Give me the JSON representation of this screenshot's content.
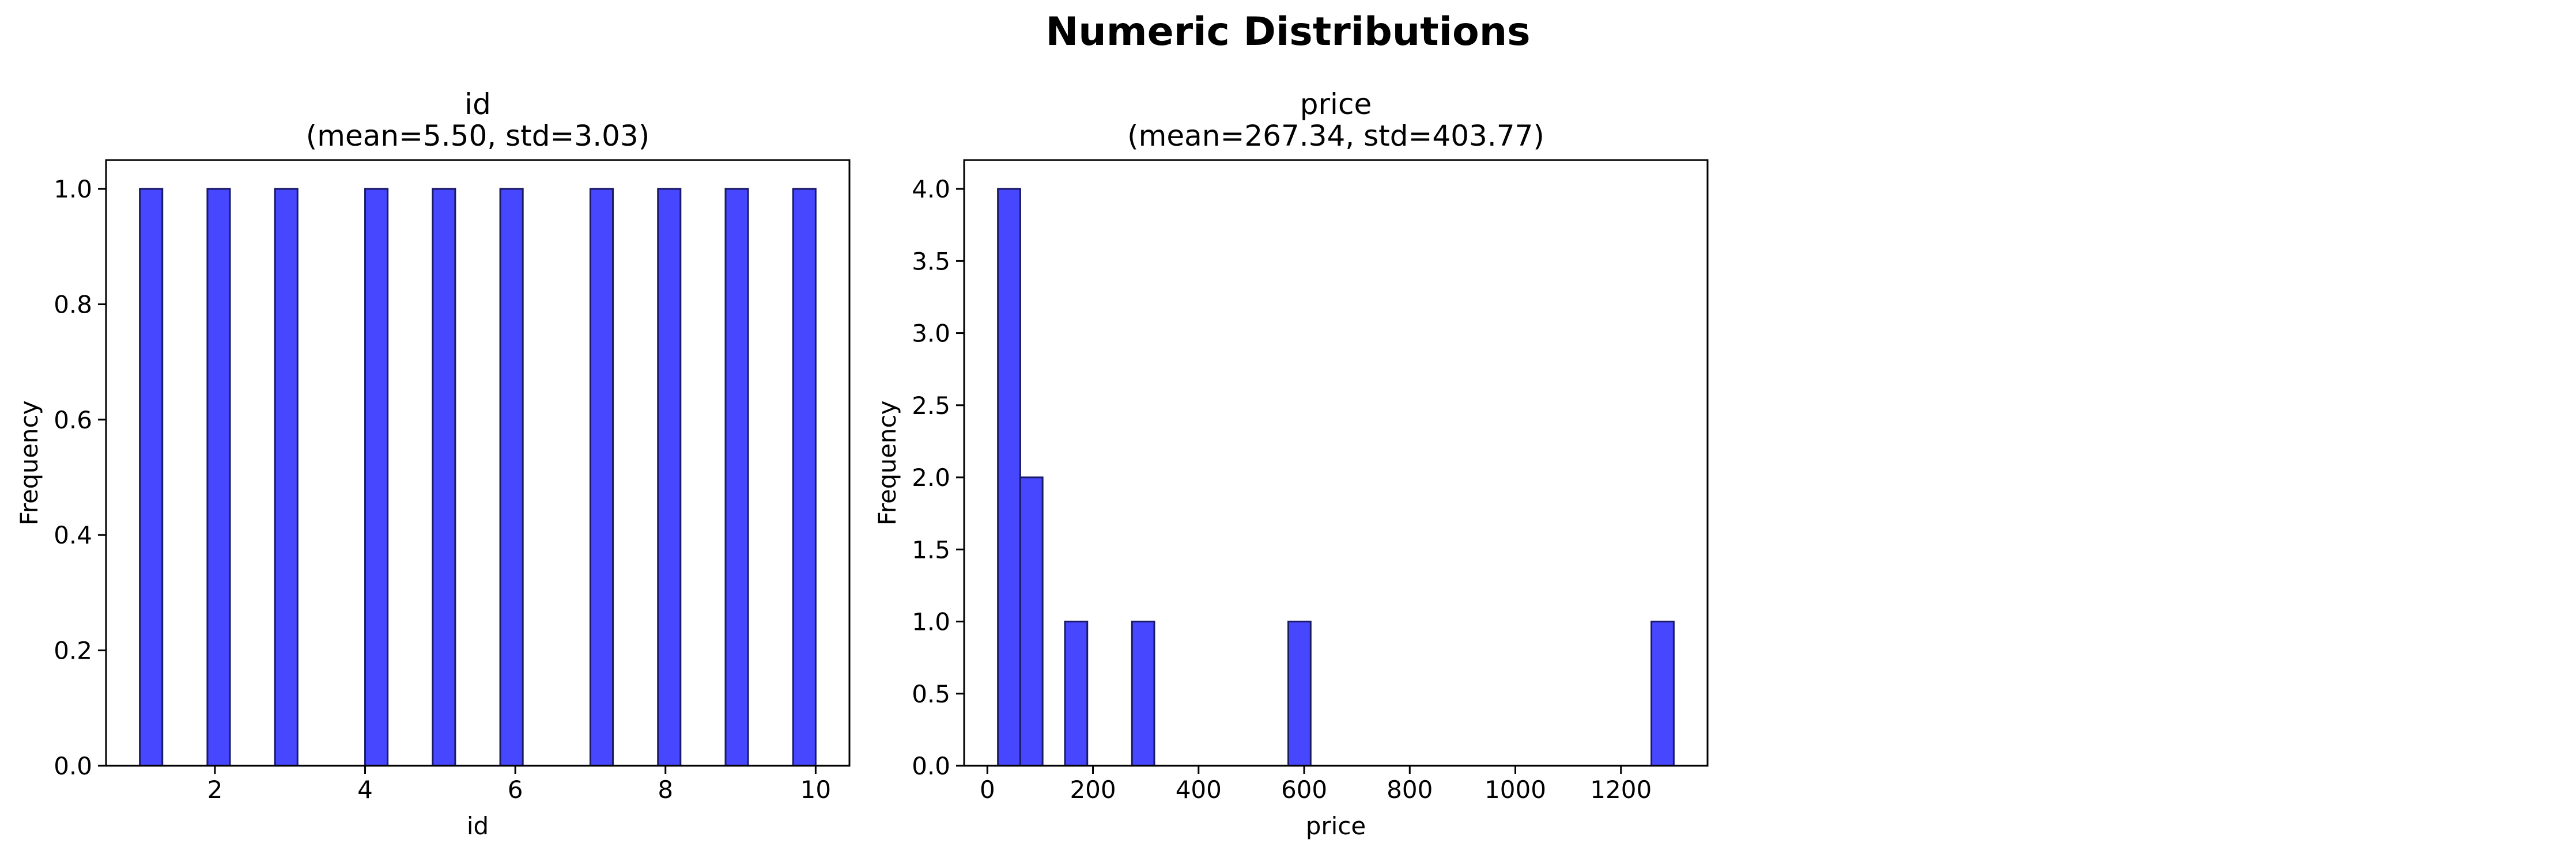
{
  "figure": {
    "suptitle": "Numeric Distributions"
  },
  "style": {
    "bar_color": "#4747ff",
    "bar_edge": "#1a1a66"
  },
  "chart_data": [
    {
      "type": "bar",
      "title": "id",
      "subtitle": "(mean=5.50, std=3.03)",
      "xlabel": "id",
      "ylabel": "Frequency",
      "xlim": [
        0.55,
        10.45
      ],
      "ylim": [
        0,
        1.05
      ],
      "xticks": [
        2,
        4,
        6,
        8,
        10
      ],
      "xtick_labels": [
        "2",
        "4",
        "6",
        "8",
        "10"
      ],
      "yticks": [
        0,
        0.2,
        0.4,
        0.6,
        0.8,
        1.0
      ],
      "ytick_labels": [
        "0.0",
        "0.2",
        "0.4",
        "0.6",
        "0.8",
        "1.0"
      ],
      "bins": [
        {
          "x0": 1.0,
          "x1": 1.3,
          "count": 1
        },
        {
          "x0": 1.9,
          "x1": 2.2,
          "count": 1
        },
        {
          "x0": 2.8,
          "x1": 3.1,
          "count": 1
        },
        {
          "x0": 4.0,
          "x1": 4.3,
          "count": 1
        },
        {
          "x0": 4.9,
          "x1": 5.2,
          "count": 1
        },
        {
          "x0": 5.8,
          "x1": 6.1,
          "count": 1
        },
        {
          "x0": 7.0,
          "x1": 7.3,
          "count": 1
        },
        {
          "x0": 7.9,
          "x1": 8.2,
          "count": 1
        },
        {
          "x0": 8.8,
          "x1": 9.1,
          "count": 1
        },
        {
          "x0": 9.7,
          "x1": 10.0,
          "count": 1
        }
      ],
      "grid": false,
      "legend": "none"
    },
    {
      "type": "bar",
      "title": "price",
      "subtitle": "(mean=267.34, std=403.77)",
      "xlabel": "price",
      "ylabel": "Frequency",
      "xlim": [
        -44,
        1364
      ],
      "ylim": [
        0,
        4.2
      ],
      "xticks": [
        0,
        200,
        400,
        600,
        800,
        1000,
        1200
      ],
      "xtick_labels": [
        "0",
        "200",
        "400",
        "600",
        "800",
        "1000",
        "1200"
      ],
      "yticks": [
        0,
        0.5,
        1.0,
        1.5,
        2.0,
        2.5,
        3.0,
        3.5,
        4.0
      ],
      "ytick_labels": [
        "0.0",
        "0.5",
        "1.0",
        "1.5",
        "2.0",
        "2.5",
        "3.0",
        "3.5",
        "4.0"
      ],
      "bins": [
        {
          "x0": 20,
          "x1": 62.3,
          "count": 4
        },
        {
          "x0": 62.3,
          "x1": 104.6,
          "count": 2
        },
        {
          "x0": 147,
          "x1": 189.3,
          "count": 1
        },
        {
          "x0": 273.9,
          "x1": 316.2,
          "count": 1
        },
        {
          "x0": 570,
          "x1": 612.3,
          "count": 1
        },
        {
          "x0": 1257.7,
          "x1": 1300,
          "count": 1
        }
      ],
      "grid": false,
      "legend": "none"
    }
  ]
}
